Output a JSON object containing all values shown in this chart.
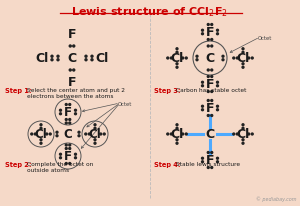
{
  "bg_color": "#f5d9c8",
  "title_color": "#cc0000",
  "step_label_color": "#cc0000",
  "bond_color_blue": "#4daaff",
  "text_color": "#222222",
  "dot_color": "#222222",
  "divider_color": "#bbbbbb",
  "watermark": "© pediabay.com",
  "step1_label": "Step 1:",
  "step1_desc": "Select the center atom and put 2\nelectrons between the atoms",
  "step2_label": "Step 2:",
  "step2_desc": "Complete the octet on\noutside atoms",
  "step3_label": "Step 3:",
  "step3_desc": "Carbon has stable octet",
  "step4_label": "Step 4:",
  "step4_desc": "Stable lewis structure",
  "octet_label": "Octet",
  "title_main": "Lewis structure of CCl",
  "title_sub": "2",
  "title_main2": "F",
  "title_sub2": "2"
}
